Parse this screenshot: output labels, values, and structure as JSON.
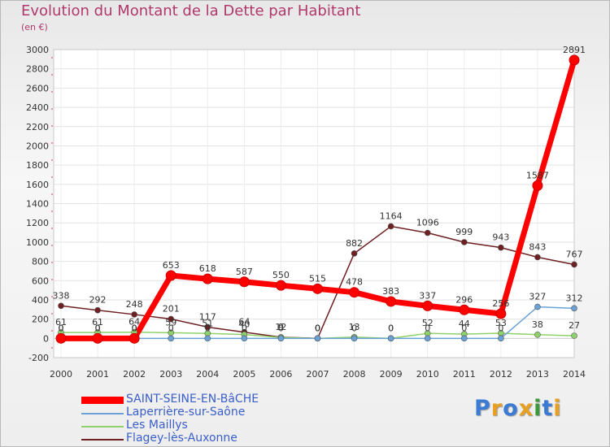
{
  "brand": {
    "text": "Proxiti",
    "colors": [
      "#3a7bd5",
      "#e8a020",
      "#3a7bd5",
      "#e8a020",
      "#3a9a3a",
      "#3a7bd5",
      "#e8a020"
    ]
  },
  "chart_data": {
    "type": "line",
    "title": "Evolution du Montant de la Dette par Habitant",
    "unit_label": "(en €)",
    "categories": [
      "2000",
      "2001",
      "2002",
      "2003",
      "2004",
      "2005",
      "2006",
      "2007",
      "2008",
      "2009",
      "2010",
      "2011",
      "2012",
      "2013",
      "2014"
    ],
    "ylim": [
      -200,
      3000
    ],
    "yticks": [
      -200,
      0,
      200,
      400,
      600,
      800,
      1000,
      1200,
      1400,
      1600,
      1800,
      2000,
      2200,
      2400,
      2600,
      2800,
      3000
    ],
    "grid": true,
    "legend_position": "bottom-left",
    "series": [
      {
        "name": "Flagey-lès-Auxonne",
        "color": "#6e1f22",
        "values": [
          338,
          292,
          248,
          201,
          117,
          64,
          12,
          0,
          882,
          1164,
          1096,
          999,
          943,
          843,
          767
        ],
        "labels": [
          "338",
          "292",
          "248",
          "201",
          "117",
          "64",
          "12",
          "0",
          "882",
          "1164",
          "1096",
          "999",
          "943",
          "843",
          "767"
        ]
      },
      {
        "name": "Les Maillys",
        "color": "#8fd16a",
        "values": [
          61,
          61,
          64,
          59,
          51,
          40,
          9,
          0,
          13,
          0,
          52,
          44,
          53,
          38,
          27
        ],
        "labels": [
          "61",
          "61",
          "64",
          "59",
          "51",
          "40",
          "9",
          "0",
          "13",
          "0",
          "52",
          "44",
          "53",
          "38",
          "27"
        ]
      },
      {
        "name": "Laperrière-sur-Saône",
        "color": "#6aa2d6",
        "values": [
          0,
          0,
          0,
          0,
          0,
          0,
          0,
          0,
          0,
          0,
          0,
          0,
          0,
          327,
          312
        ],
        "labels": [
          "0",
          "0",
          "0",
          "0",
          "0",
          "0",
          "0",
          "0",
          "0",
          "0",
          "0",
          "0",
          "0",
          "327",
          "312"
        ]
      },
      {
        "name": "SAINT-SEINE-EN-BâCHE",
        "color": "#ff0000",
        "values": [
          0,
          0,
          0,
          653,
          618,
          587,
          550,
          515,
          478,
          383,
          337,
          296,
          256,
          1587,
          2891
        ],
        "labels": [
          "0",
          "0",
          "0",
          "653",
          "618",
          "587",
          "550",
          "515",
          "478",
          "383",
          "337",
          "296",
          "256",
          "1587",
          "2891"
        ]
      }
    ],
    "legend_order": [
      "SAINT-SEINE-EN-BâCHE",
      "Laperrière-sur-Saône",
      "Les Maillys",
      "Flagey-lès-Auxonne"
    ]
  }
}
